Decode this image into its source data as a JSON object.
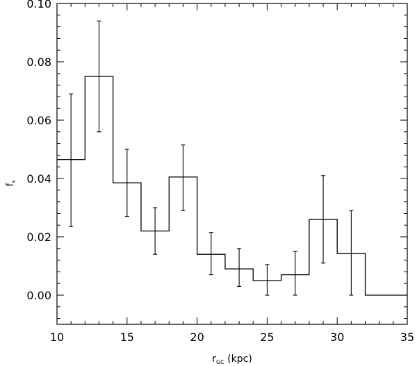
{
  "chart_data": {
    "type": "histogram-step",
    "xlabel": {
      "main": "r",
      "sub": "GC",
      "rest": " (kpc)"
    },
    "ylabel": {
      "main": "f",
      "sub": "s"
    },
    "xlim": [
      10,
      35
    ],
    "ylim": [
      -0.01,
      0.1
    ],
    "xticks": [
      10,
      15,
      20,
      25,
      30,
      35
    ],
    "xtick_labels": [
      "10",
      "15",
      "20",
      "25",
      "30",
      "35"
    ],
    "yticks": [
      0.0,
      0.02,
      0.04,
      0.06,
      0.08,
      0.1
    ],
    "ytick_labels": [
      "0.00",
      "0.02",
      "0.04",
      "0.06",
      "0.08",
      "0.10"
    ],
    "x_minor_step": 1,
    "y_minor_step": 0.004,
    "grid": false,
    "bin_edges": [
      10,
      12,
      14,
      16,
      18,
      20,
      22,
      24,
      26,
      28,
      30,
      32,
      35
    ],
    "values": [
      0.0465,
      0.075,
      0.0385,
      0.022,
      0.0405,
      0.014,
      0.009,
      0.005,
      0.007,
      0.026,
      0.0143,
      0.0
    ],
    "errorbars": [
      {
        "x": 11,
        "low": 0.0235,
        "high": 0.069
      },
      {
        "x": 13,
        "low": 0.056,
        "high": 0.094
      },
      {
        "x": 15,
        "low": 0.027,
        "high": 0.05
      },
      {
        "x": 17,
        "low": 0.014,
        "high": 0.03
      },
      {
        "x": 19,
        "low": 0.029,
        "high": 0.0515
      },
      {
        "x": 21,
        "low": 0.007,
        "high": 0.0215
      },
      {
        "x": 23,
        "low": 0.003,
        "high": 0.016
      },
      {
        "x": 25,
        "low": 0.0,
        "high": 0.0105
      },
      {
        "x": 27,
        "low": 0.0,
        "high": 0.015
      },
      {
        "x": 29,
        "low": 0.011,
        "high": 0.041
      },
      {
        "x": 31,
        "low": 0.0,
        "high": 0.029
      }
    ],
    "colors": {
      "line": "#000000",
      "background": "#ffffff"
    }
  }
}
